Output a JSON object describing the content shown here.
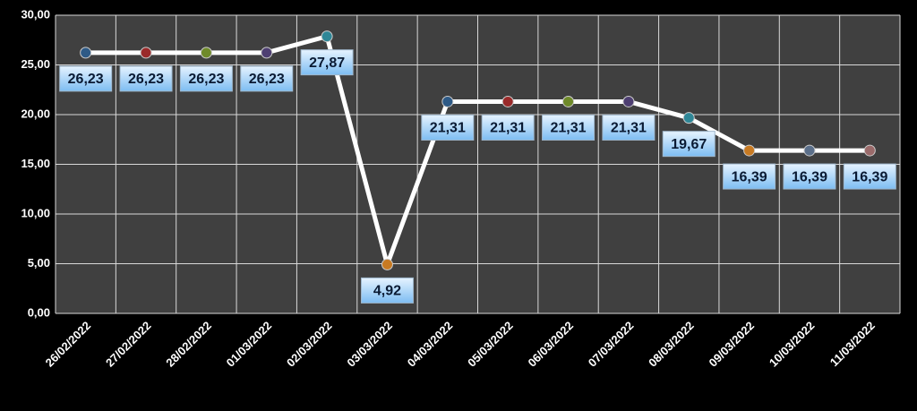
{
  "chart_data": {
    "type": "line",
    "categories": [
      "26/02/2022",
      "27/02/2022",
      "28/02/2022",
      "01/03/2022",
      "02/03/2022",
      "03/03/2022",
      "04/03/2022",
      "05/03/2022",
      "06/03/2022",
      "07/03/2022",
      "08/03/2022",
      "09/03/2022",
      "10/03/2022",
      "11/03/2022"
    ],
    "values": [
      26.23,
      26.23,
      26.23,
      26.23,
      27.87,
      4.92,
      21.31,
      21.31,
      21.31,
      21.31,
      19.67,
      16.39,
      16.39,
      16.39
    ],
    "value_labels": [
      "26,23",
      "26,23",
      "26,23",
      "26,23",
      "27,87",
      "4,92",
      "21,31",
      "21,31",
      "21,31",
      "21,31",
      "19,67",
      "16,39",
      "16,39",
      "16,39"
    ],
    "color": "#ffffff",
    "marker_colors": [
      "#2e5a86",
      "#9a2a2a",
      "#6f8a2a",
      "#4e3f72",
      "#2f8797",
      "#c87a22",
      "#2e5a86",
      "#9a2a2a",
      "#6f8a2a",
      "#4e3f72",
      "#2f8797",
      "#c87a22",
      "#5b6f8a",
      "#9a6a6a"
    ],
    "ylim": [
      0,
      30
    ],
    "yticks": [
      {
        "value": 0,
        "label": "0,00"
      },
      {
        "value": 5,
        "label": "5,00"
      },
      {
        "value": 10,
        "label": "10,00"
      },
      {
        "value": 15,
        "label": "15,00"
      },
      {
        "value": 20,
        "label": "20,00"
      },
      {
        "value": 25,
        "label": "25,00"
      },
      {
        "value": 30,
        "label": "30,00"
      }
    ],
    "grid": true
  }
}
